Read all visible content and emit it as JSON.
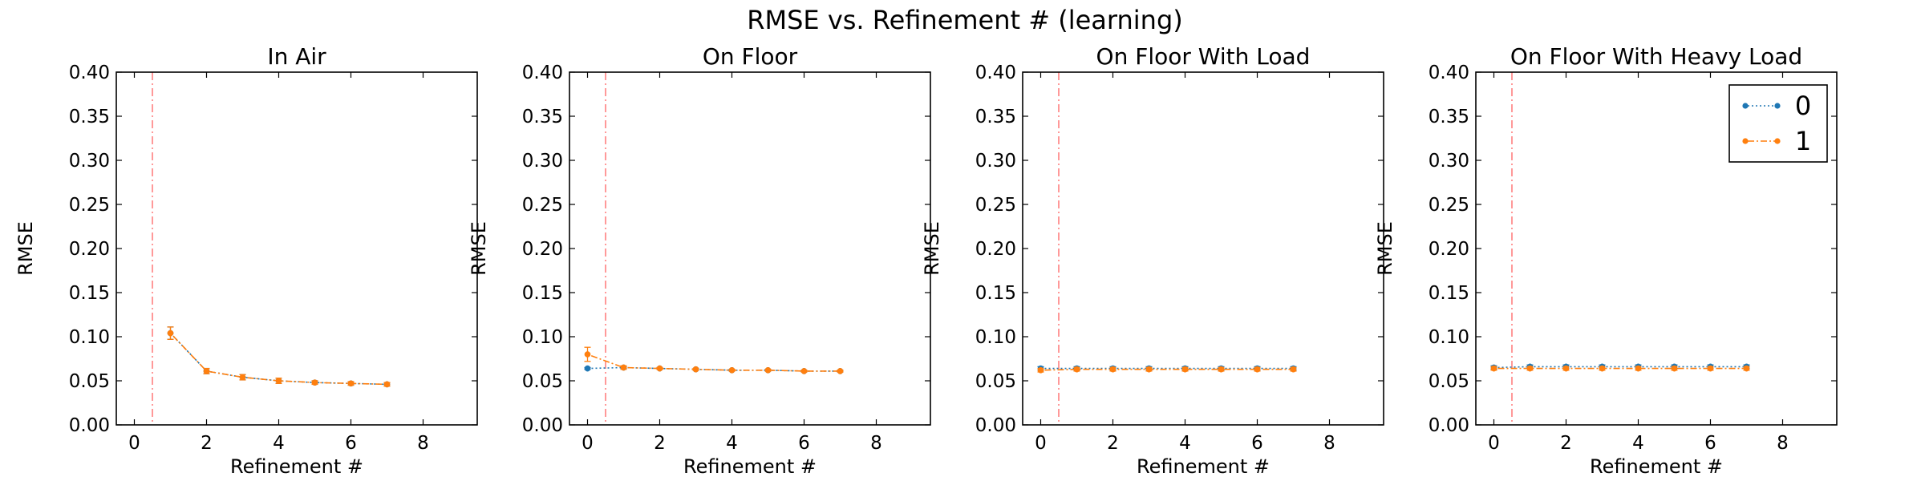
{
  "figure": {
    "title": "RMSE vs. Refinement # (learning)"
  },
  "colors": {
    "series0": "#1f77b4",
    "series1": "#ff7f0e",
    "vline": "#ff9999",
    "axes": "#000000"
  },
  "chart_data": [
    {
      "type": "line",
      "title": "In Air",
      "xlabel": "Refinement #",
      "ylabel": "RMSE",
      "xlim": [
        -0.5,
        9.5
      ],
      "ylim": [
        0.0,
        0.4
      ],
      "xticks": [
        "0",
        "2",
        "4",
        "6",
        "8"
      ],
      "yticks": [
        "0.00",
        "0.05",
        "0.10",
        "0.15",
        "0.20",
        "0.25",
        "0.30",
        "0.35",
        "0.40"
      ],
      "vline_x": 0.5,
      "legend": null,
      "series": [
        {
          "name": "0",
          "x": [
            1,
            2,
            3,
            4,
            5,
            6,
            7
          ],
          "y": [
            0.104,
            0.061,
            0.054,
            0.05,
            0.048,
            0.047,
            0.046
          ],
          "err": [
            0.007,
            0.003,
            0.003,
            0.003,
            0.002,
            0.002,
            0.002
          ]
        },
        {
          "name": "1",
          "x": [
            1,
            2,
            3,
            4,
            5,
            6,
            7
          ],
          "y": [
            0.104,
            0.061,
            0.054,
            0.05,
            0.048,
            0.047,
            0.046
          ],
          "err": [
            0.007,
            0.003,
            0.003,
            0.003,
            0.002,
            0.002,
            0.002
          ]
        }
      ]
    },
    {
      "type": "line",
      "title": "On Floor",
      "xlabel": "Refinement #",
      "ylabel": "RMSE",
      "xlim": [
        -0.5,
        9.5
      ],
      "ylim": [
        0.0,
        0.4
      ],
      "xticks": [
        "0",
        "2",
        "4",
        "6",
        "8"
      ],
      "yticks": [
        "0.00",
        "0.05",
        "0.10",
        "0.15",
        "0.20",
        "0.25",
        "0.30",
        "0.35",
        "0.40"
      ],
      "vline_x": 0.5,
      "legend": null,
      "series": [
        {
          "name": "0",
          "x": [
            0,
            1,
            2,
            3,
            4,
            5,
            6,
            7
          ],
          "y": [
            0.064,
            0.065,
            0.064,
            0.063,
            0.062,
            0.062,
            0.061,
            0.061
          ],
          "err": [
            0.001,
            0.001,
            0.001,
            0.001,
            0.001,
            0.001,
            0.001,
            0.001
          ]
        },
        {
          "name": "1",
          "x": [
            0,
            1,
            2,
            3,
            4,
            5,
            6,
            7
          ],
          "y": [
            0.08,
            0.065,
            0.064,
            0.063,
            0.062,
            0.062,
            0.061,
            0.061
          ],
          "err": [
            0.008,
            0.002,
            0.001,
            0.001,
            0.001,
            0.001,
            0.001,
            0.001
          ]
        }
      ]
    },
    {
      "type": "line",
      "title": "On Floor With Load",
      "xlabel": "Refinement #",
      "ylabel": "RMSE",
      "xlim": [
        -0.5,
        9.5
      ],
      "ylim": [
        0.0,
        0.4
      ],
      "xticks": [
        "0",
        "2",
        "4",
        "6",
        "8"
      ],
      "yticks": [
        "0.00",
        "0.05",
        "0.10",
        "0.15",
        "0.20",
        "0.25",
        "0.30",
        "0.35",
        "0.40"
      ],
      "vline_x": 0.5,
      "legend": null,
      "series": [
        {
          "name": "0",
          "x": [
            0,
            1,
            2,
            3,
            4,
            5,
            6,
            7
          ],
          "y": [
            0.064,
            0.064,
            0.064,
            0.064,
            0.064,
            0.064,
            0.064,
            0.064
          ],
          "err": [
            0.002,
            0.002,
            0.002,
            0.002,
            0.002,
            0.002,
            0.002,
            0.002
          ]
        },
        {
          "name": "1",
          "x": [
            0,
            1,
            2,
            3,
            4,
            5,
            6,
            7
          ],
          "y": [
            0.062,
            0.063,
            0.063,
            0.063,
            0.063,
            0.063,
            0.063,
            0.063
          ],
          "err": [
            0.002,
            0.002,
            0.002,
            0.002,
            0.002,
            0.002,
            0.002,
            0.002
          ]
        }
      ]
    },
    {
      "type": "line",
      "title": "On Floor With Heavy Load",
      "xlabel": "Refinement #",
      "ylabel": "RMSE",
      "xlim": [
        -0.5,
        9.5
      ],
      "ylim": [
        0.0,
        0.4
      ],
      "xticks": [
        "0",
        "2",
        "4",
        "6",
        "8"
      ],
      "yticks": [
        "0.00",
        "0.05",
        "0.10",
        "0.15",
        "0.20",
        "0.25",
        "0.30",
        "0.35",
        "0.40"
      ],
      "vline_x": 0.5,
      "legend": {
        "position": "top-right",
        "entries": [
          "0",
          "1"
        ]
      },
      "series": [
        {
          "name": "0",
          "x": [
            0,
            1,
            2,
            3,
            4,
            5,
            6,
            7
          ],
          "y": [
            0.065,
            0.066,
            0.066,
            0.066,
            0.066,
            0.066,
            0.066,
            0.066
          ],
          "err": [
            0.002,
            0.002,
            0.002,
            0.002,
            0.002,
            0.002,
            0.002,
            0.002
          ]
        },
        {
          "name": "1",
          "x": [
            0,
            1,
            2,
            3,
            4,
            5,
            6,
            7
          ],
          "y": [
            0.064,
            0.064,
            0.064,
            0.064,
            0.064,
            0.064,
            0.064,
            0.064
          ],
          "err": [
            0.002,
            0.002,
            0.002,
            0.002,
            0.002,
            0.002,
            0.002,
            0.002
          ]
        }
      ]
    }
  ]
}
